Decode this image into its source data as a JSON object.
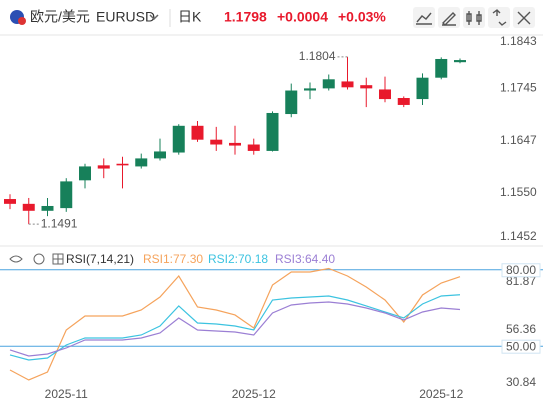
{
  "header": {
    "pair": "欧元/美元",
    "symbol": "EURUSD",
    "period": "日K",
    "price": "1.1798",
    "change": "+0.0004",
    "change_pct": "+0.03%"
  },
  "chart_data": [
    {
      "type": "candlestick",
      "categories": [
        null,
        null,
        null,
        "2025-11",
        null,
        null,
        null,
        null,
        null,
        null,
        null,
        null,
        null,
        "2025-12",
        null,
        null,
        null,
        null,
        null,
        null,
        null,
        null,
        null,
        "2025-12",
        null
      ],
      "open": [
        1.1538,
        1.1529,
        1.1516,
        1.1521,
        1.1573,
        1.1601,
        1.1604,
        1.1599,
        1.1614,
        1.1625,
        1.1675,
        1.1649,
        1.1643,
        1.164,
        1.1628,
        1.1697,
        1.1741,
        1.1745,
        1.1758,
        1.1751,
        1.1743,
        1.1727,
        1.1725,
        1.1765,
        1.1794
      ],
      "high": [
        1.1547,
        1.154,
        1.154,
        1.1577,
        1.1604,
        1.1614,
        1.1617,
        1.1623,
        1.1651,
        1.1678,
        1.1684,
        1.1673,
        1.1675,
        1.1651,
        1.1702,
        1.1754,
        1.1756,
        1.1771,
        1.1804,
        1.1765,
        1.1767,
        1.173,
        1.1773,
        1.1803,
        1.1801
      ],
      "low": [
        1.1519,
        1.1491,
        1.1506,
        1.1514,
        1.1558,
        1.1577,
        1.1558,
        1.1595,
        1.161,
        1.1621,
        1.1645,
        1.1628,
        1.1621,
        1.1621,
        1.1627,
        1.1691,
        1.1725,
        1.1741,
        1.1743,
        1.171,
        1.1719,
        1.171,
        1.1714,
        1.1762,
        1.1792
      ],
      "close": [
        1.1529,
        1.1516,
        1.1525,
        1.1571,
        1.1599,
        1.1595,
        1.1601,
        1.1614,
        1.1627,
        1.1675,
        1.1649,
        1.164,
        1.1638,
        1.1628,
        1.1699,
        1.1741,
        1.1745,
        1.1762,
        1.1747,
        1.1745,
        1.1725,
        1.1714,
        1.1765,
        1.18,
        1.1798
      ],
      "up_color": "#17805a",
      "down_color": "#e8192c",
      "ylim": [
        1.1452,
        1.1843
      ],
      "yticks": [
        1.1452,
        {
          "value": 1.155,
          "label": "1.1550"
        },
        1.1647,
        1.1745,
        1.1843
      ],
      "max_label": "1.1804",
      "min_label": "1.1491"
    },
    {
      "type": "line",
      "indicator": "RSI(7,14,21)",
      "series": [
        {
          "name": "RSI1:77.30",
          "color": "#f5a35c",
          "values": [
            40.66,
            36.74,
            39.87,
            56.36,
            61.85,
            61.85,
            61.85,
            64.21,
            69.31,
            77.55,
            65.39,
            64.21,
            62.25,
            57.14,
            74.02,
            79.12,
            79.12,
            80.5,
            77.55,
            73.24,
            68.13,
            59.5,
            70.1,
            74.8,
            77.3
          ]
        },
        {
          "name": "RSI2:70.18",
          "color": "#3cc3e0",
          "values": [
            46.55,
            44.59,
            45.37,
            50.47,
            53.22,
            53.22,
            53.22,
            54.4,
            57.93,
            65.78,
            59.11,
            58.71,
            57.93,
            56.36,
            68.13,
            68.92,
            69.31,
            69.7,
            68.13,
            65.78,
            63.43,
            61.07,
            66.57,
            69.7,
            70.18
          ]
        },
        {
          "name": "RSI3:64.40",
          "color": "#9b7fd4",
          "values": [
            48.51,
            46.16,
            46.94,
            49.29,
            52.44,
            52.44,
            52.44,
            53.22,
            55.18,
            61.07,
            56.36,
            55.97,
            55.57,
            54.4,
            63.03,
            66.17,
            66.96,
            67.35,
            66.57,
            64.99,
            63.03,
            60.29,
            63.43,
            64.99,
            64.4
          ]
        }
      ],
      "ylim": [
        30.84,
        81.87
      ],
      "yticks": [
        30.84,
        56.36,
        81.87
      ],
      "hlines": [
        {
          "value": 80,
          "label": "80.00"
        },
        {
          "value": 50,
          "label": "50.00"
        }
      ],
      "hline_color": "#4aa3df"
    }
  ]
}
